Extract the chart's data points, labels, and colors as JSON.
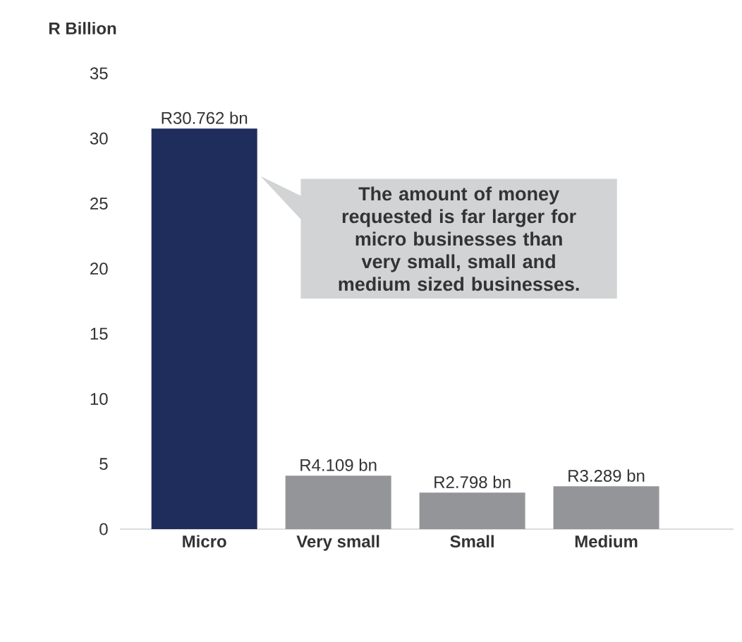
{
  "chart_data": {
    "type": "bar",
    "ylabel": "R Billion",
    "categories": [
      "Micro",
      "Very small",
      "Small",
      "Medium"
    ],
    "values": [
      30.762,
      4.109,
      2.798,
      3.289
    ],
    "colors": [
      "#1f2d5c",
      "#939598",
      "#939598",
      "#939598"
    ],
    "value_labels": [
      "R30.762 bn",
      "R4.109 bn",
      "R2.798 bn",
      "R3.289 bn"
    ],
    "ylim": [
      0,
      35
    ],
    "yticks": [
      0,
      5,
      10,
      15,
      20,
      25,
      30,
      35
    ],
    "annotations": [
      "The amount of money requested is far larger for micro businesses than very small, small and medium sized businesses."
    ]
  }
}
